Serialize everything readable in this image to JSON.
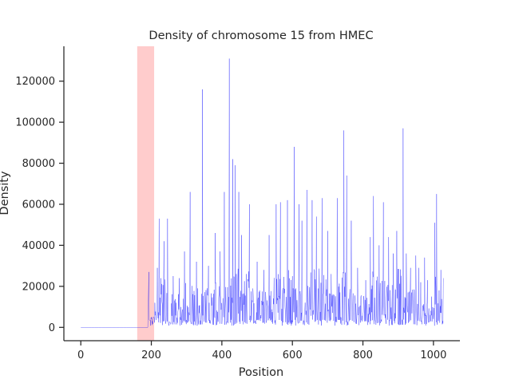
{
  "chart_data": {
    "type": "line",
    "title": "Density of chromosome 15 from HMEC",
    "xlabel": "Position",
    "ylabel": "Density",
    "xlim": [
      -48,
      1075
    ],
    "ylim": [
      -6500,
      137000
    ],
    "xticks": [
      0,
      200,
      400,
      600,
      800,
      1000
    ],
    "yticks": [
      0,
      20000,
      40000,
      60000,
      80000,
      100000,
      120000
    ],
    "highlight_span": {
      "x0": 160,
      "x1": 208,
      "color": "#ffcccc"
    },
    "series_color": "#0000ff",
    "spines": "left-bottom",
    "grid": false,
    "flat_segment": {
      "x0": 0,
      "x1": 190,
      "y": 0
    },
    "peaks": [
      [
        193,
        27000
      ],
      [
        205,
        4000
      ],
      [
        210,
        12000
      ],
      [
        217,
        29000
      ],
      [
        222,
        53000
      ],
      [
        236,
        42000
      ],
      [
        246,
        53000
      ],
      [
        262,
        25000
      ],
      [
        279,
        24000
      ],
      [
        294,
        37000
      ],
      [
        310,
        66000
      ],
      [
        328,
        32000
      ],
      [
        345,
        116000
      ],
      [
        362,
        30000
      ],
      [
        381,
        46000
      ],
      [
        395,
        37000
      ],
      [
        407,
        66000
      ],
      [
        421,
        131000
      ],
      [
        431,
        82000
      ],
      [
        438,
        79000
      ],
      [
        448,
        66000
      ],
      [
        456,
        45000
      ],
      [
        478,
        60000
      ],
      [
        500,
        32000
      ],
      [
        519,
        28000
      ],
      [
        534,
        45000
      ],
      [
        554,
        60000
      ],
      [
        566,
        61000
      ],
      [
        586,
        62000
      ],
      [
        605,
        88000
      ],
      [
        619,
        60000
      ],
      [
        627,
        52000
      ],
      [
        641,
        67000
      ],
      [
        656,
        62000
      ],
      [
        668,
        54000
      ],
      [
        684,
        63000
      ],
      [
        700,
        47000
      ],
      [
        710,
        26000
      ],
      [
        727,
        63000
      ],
      [
        746,
        96000
      ],
      [
        754,
        74000
      ],
      [
        767,
        52000
      ],
      [
        785,
        29000
      ],
      [
        808,
        23000
      ],
      [
        821,
        44000
      ],
      [
        830,
        64000
      ],
      [
        846,
        40000
      ],
      [
        858,
        61000
      ],
      [
        873,
        44000
      ],
      [
        886,
        36000
      ],
      [
        896,
        47000
      ],
      [
        914,
        97000
      ],
      [
        923,
        36000
      ],
      [
        935,
        29000
      ],
      [
        950,
        35000
      ],
      [
        958,
        29000
      ],
      [
        964,
        22000
      ],
      [
        975,
        34000
      ],
      [
        983,
        23000
      ],
      [
        995,
        15000
      ],
      [
        1004,
        51000
      ],
      [
        1009,
        65000
      ],
      [
        1016,
        18000
      ],
      [
        1021,
        28000
      ],
      [
        1028,
        24000
      ]
    ]
  }
}
